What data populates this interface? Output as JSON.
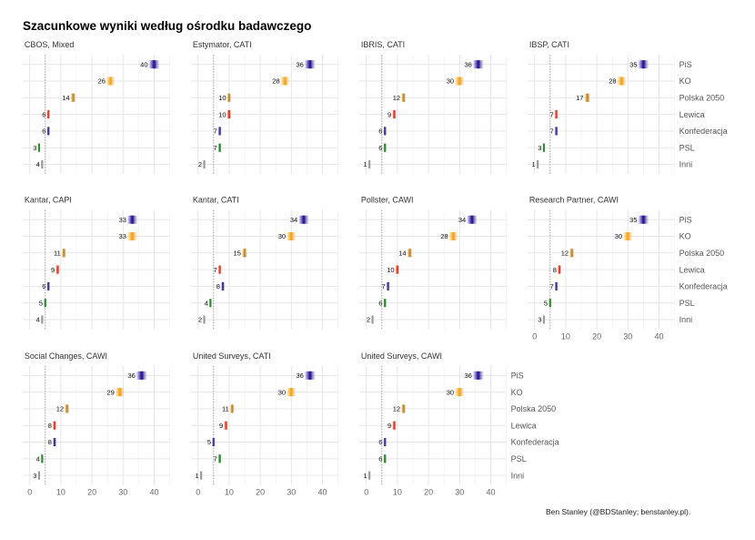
{
  "chart_data": {
    "type": "scatter",
    "title": "Szacunkowe wyniki według ośrodku badawczego",
    "caption": "Ben Stanley (@BDStanley; benstanley.pl).",
    "xlabel": "",
    "ylabel": "",
    "xlim": [
      0,
      45
    ],
    "x_ticks": [
      "0",
      "10",
      "20",
      "30",
      "40"
    ],
    "threshold_line": 5,
    "grid": true,
    "parties": [
      "PiS",
      "KO",
      "Polska 2050",
      "Lewica",
      "Konfederacja",
      "PSL",
      "Inni"
    ],
    "party_colors": {
      "PiS": "#2f1a98",
      "KO": "#f7a51e",
      "Polska 2050": "#c48c2a",
      "Lewica": "#ea3b24",
      "Konfederacja": "#3e3a9a",
      "PSL": "#2e8b32",
      "Inni": "#9a9a9a"
    },
    "panels": [
      {
        "name": "CBOS, Mixed",
        "values": [
          40,
          26,
          14,
          6,
          6,
          3,
          4
        ]
      },
      {
        "name": "Estymator, CATI",
        "values": [
          36,
          28,
          10,
          10,
          7,
          7,
          2
        ]
      },
      {
        "name": "IBRIS, CATI",
        "values": [
          36,
          30,
          12,
          9,
          6,
          6,
          1
        ]
      },
      {
        "name": "IBSP, CATI",
        "values": [
          35,
          28,
          17,
          7,
          7,
          3,
          1
        ]
      },
      {
        "name": "Kantar, CAPI",
        "values": [
          33,
          33,
          11,
          9,
          6,
          5,
          4
        ]
      },
      {
        "name": "Kantar, CATI",
        "values": [
          34,
          30,
          15,
          7,
          8,
          4,
          2
        ]
      },
      {
        "name": "Pollster, CAWI",
        "values": [
          34,
          28,
          14,
          10,
          7,
          6,
          2
        ]
      },
      {
        "name": "Research Partner, CAWI",
        "values": [
          35,
          30,
          12,
          8,
          7,
          5,
          3
        ]
      },
      {
        "name": "Social Changes, CAWI",
        "values": [
          36,
          29,
          12,
          8,
          8,
          4,
          3
        ]
      },
      {
        "name": "United Surveys, CATI",
        "values": [
          36,
          30,
          11,
          9,
          5,
          7,
          1
        ]
      },
      {
        "name": "United Surveys, CAWI",
        "values": [
          36,
          30,
          12,
          9,
          6,
          6,
          1
        ]
      }
    ]
  }
}
